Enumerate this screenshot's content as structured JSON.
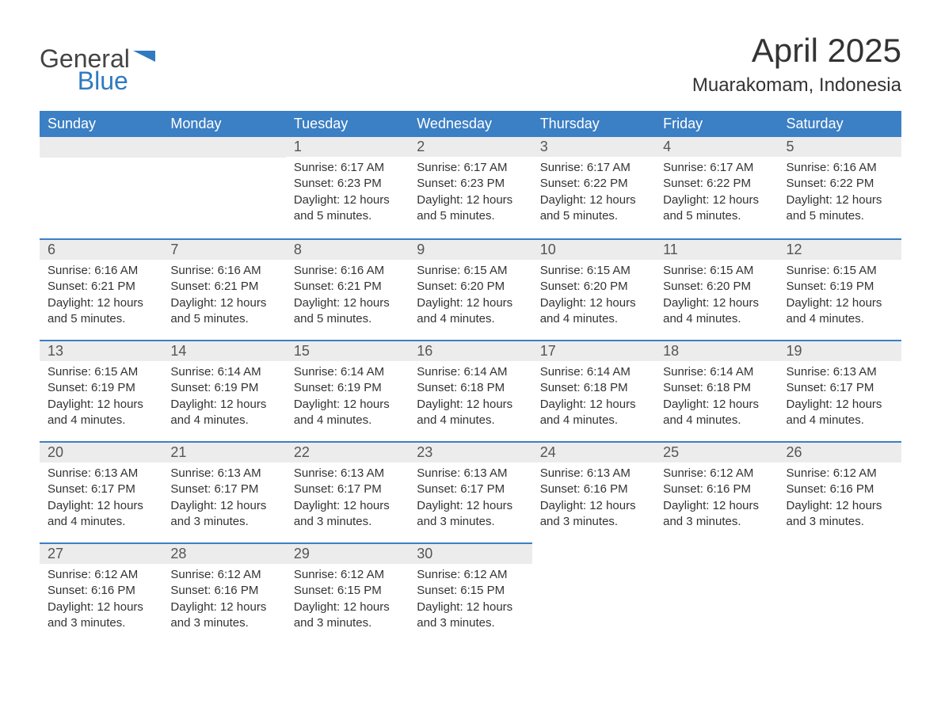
{
  "logo": {
    "word1": "General",
    "word2": "Blue"
  },
  "title": "April 2025",
  "location": "Muarakomam, Indonesia",
  "colors": {
    "header_bg": "#3b7fc4",
    "header_text": "#ffffff",
    "daynum_bg": "#ececec",
    "row_divider": "#3b7fc4",
    "body_text": "#333333",
    "logo_gray": "#444444",
    "logo_blue": "#2f7ac0",
    "page_bg": "#ffffff"
  },
  "typography": {
    "title_fontsize": 42,
    "location_fontsize": 24,
    "weekday_fontsize": 18,
    "daynum_fontsize": 18,
    "body_fontsize": 15
  },
  "weekdays": [
    "Sunday",
    "Monday",
    "Tuesday",
    "Wednesday",
    "Thursday",
    "Friday",
    "Saturday"
  ],
  "labels": {
    "sunrise": "Sunrise:",
    "sunset": "Sunset:",
    "daylight": "Daylight:"
  },
  "weeks": [
    [
      null,
      null,
      {
        "n": "1",
        "sunrise": "6:17 AM",
        "sunset": "6:23 PM",
        "daylight": "12 hours and 5 minutes."
      },
      {
        "n": "2",
        "sunrise": "6:17 AM",
        "sunset": "6:23 PM",
        "daylight": "12 hours and 5 minutes."
      },
      {
        "n": "3",
        "sunrise": "6:17 AM",
        "sunset": "6:22 PM",
        "daylight": "12 hours and 5 minutes."
      },
      {
        "n": "4",
        "sunrise": "6:17 AM",
        "sunset": "6:22 PM",
        "daylight": "12 hours and 5 minutes."
      },
      {
        "n": "5",
        "sunrise": "6:16 AM",
        "sunset": "6:22 PM",
        "daylight": "12 hours and 5 minutes."
      }
    ],
    [
      {
        "n": "6",
        "sunrise": "6:16 AM",
        "sunset": "6:21 PM",
        "daylight": "12 hours and 5 minutes."
      },
      {
        "n": "7",
        "sunrise": "6:16 AM",
        "sunset": "6:21 PM",
        "daylight": "12 hours and 5 minutes."
      },
      {
        "n": "8",
        "sunrise": "6:16 AM",
        "sunset": "6:21 PM",
        "daylight": "12 hours and 5 minutes."
      },
      {
        "n": "9",
        "sunrise": "6:15 AM",
        "sunset": "6:20 PM",
        "daylight": "12 hours and 4 minutes."
      },
      {
        "n": "10",
        "sunrise": "6:15 AM",
        "sunset": "6:20 PM",
        "daylight": "12 hours and 4 minutes."
      },
      {
        "n": "11",
        "sunrise": "6:15 AM",
        "sunset": "6:20 PM",
        "daylight": "12 hours and 4 minutes."
      },
      {
        "n": "12",
        "sunrise": "6:15 AM",
        "sunset": "6:19 PM",
        "daylight": "12 hours and 4 minutes."
      }
    ],
    [
      {
        "n": "13",
        "sunrise": "6:15 AM",
        "sunset": "6:19 PM",
        "daylight": "12 hours and 4 minutes."
      },
      {
        "n": "14",
        "sunrise": "6:14 AM",
        "sunset": "6:19 PM",
        "daylight": "12 hours and 4 minutes."
      },
      {
        "n": "15",
        "sunrise": "6:14 AM",
        "sunset": "6:19 PM",
        "daylight": "12 hours and 4 minutes."
      },
      {
        "n": "16",
        "sunrise": "6:14 AM",
        "sunset": "6:18 PM",
        "daylight": "12 hours and 4 minutes."
      },
      {
        "n": "17",
        "sunrise": "6:14 AM",
        "sunset": "6:18 PM",
        "daylight": "12 hours and 4 minutes."
      },
      {
        "n": "18",
        "sunrise": "6:14 AM",
        "sunset": "6:18 PM",
        "daylight": "12 hours and 4 minutes."
      },
      {
        "n": "19",
        "sunrise": "6:13 AM",
        "sunset": "6:17 PM",
        "daylight": "12 hours and 4 minutes."
      }
    ],
    [
      {
        "n": "20",
        "sunrise": "6:13 AM",
        "sunset": "6:17 PM",
        "daylight": "12 hours and 4 minutes."
      },
      {
        "n": "21",
        "sunrise": "6:13 AM",
        "sunset": "6:17 PM",
        "daylight": "12 hours and 3 minutes."
      },
      {
        "n": "22",
        "sunrise": "6:13 AM",
        "sunset": "6:17 PM",
        "daylight": "12 hours and 3 minutes."
      },
      {
        "n": "23",
        "sunrise": "6:13 AM",
        "sunset": "6:17 PM",
        "daylight": "12 hours and 3 minutes."
      },
      {
        "n": "24",
        "sunrise": "6:13 AM",
        "sunset": "6:16 PM",
        "daylight": "12 hours and 3 minutes."
      },
      {
        "n": "25",
        "sunrise": "6:12 AM",
        "sunset": "6:16 PM",
        "daylight": "12 hours and 3 minutes."
      },
      {
        "n": "26",
        "sunrise": "6:12 AM",
        "sunset": "6:16 PM",
        "daylight": "12 hours and 3 minutes."
      }
    ],
    [
      {
        "n": "27",
        "sunrise": "6:12 AM",
        "sunset": "6:16 PM",
        "daylight": "12 hours and 3 minutes."
      },
      {
        "n": "28",
        "sunrise": "6:12 AM",
        "sunset": "6:16 PM",
        "daylight": "12 hours and 3 minutes."
      },
      {
        "n": "29",
        "sunrise": "6:12 AM",
        "sunset": "6:15 PM",
        "daylight": "12 hours and 3 minutes."
      },
      {
        "n": "30",
        "sunrise": "6:12 AM",
        "sunset": "6:15 PM",
        "daylight": "12 hours and 3 minutes."
      },
      null,
      null,
      null
    ]
  ]
}
